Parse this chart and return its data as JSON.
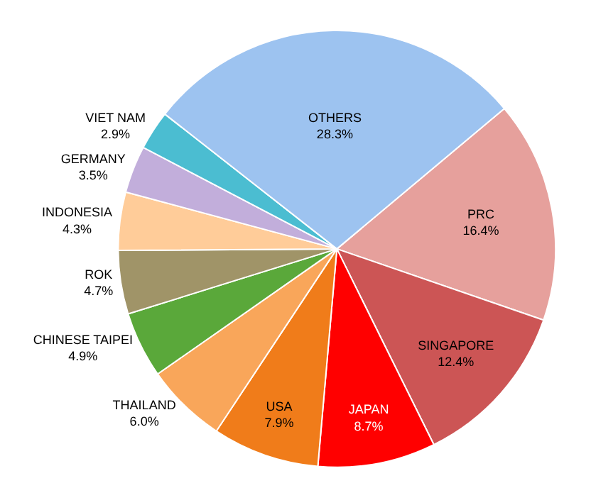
{
  "chart_data": {
    "type": "pie",
    "categories": [
      "PRC",
      "SINGAPORE",
      "JAPAN",
      "USA",
      "THAILAND",
      "CHINESE TAIPEI",
      "ROK",
      "INDONESIA",
      "GERMANY",
      "VIET NAM",
      "OTHERS"
    ],
    "values": [
      16.4,
      12.4,
      8.7,
      7.9,
      6.0,
      4.9,
      4.7,
      4.3,
      3.5,
      2.9,
      28.3
    ],
    "value_labels": [
      "16.4%",
      "12.4%",
      "8.7%",
      "7.9%",
      "6.0%",
      "4.9%",
      "4.7%",
      "4.3%",
      "3.5%",
      "2.9%",
      "28.3%"
    ],
    "colors": [
      "#e6a09c",
      "#cc5555",
      "#ff0000",
      "#f07c1a",
      "#f9a65a",
      "#5aa83a",
      "#a09468",
      "#ffcc99",
      "#c2aedb",
      "#4bbdd1",
      "#9dc3f0"
    ],
    "legend": false
  }
}
